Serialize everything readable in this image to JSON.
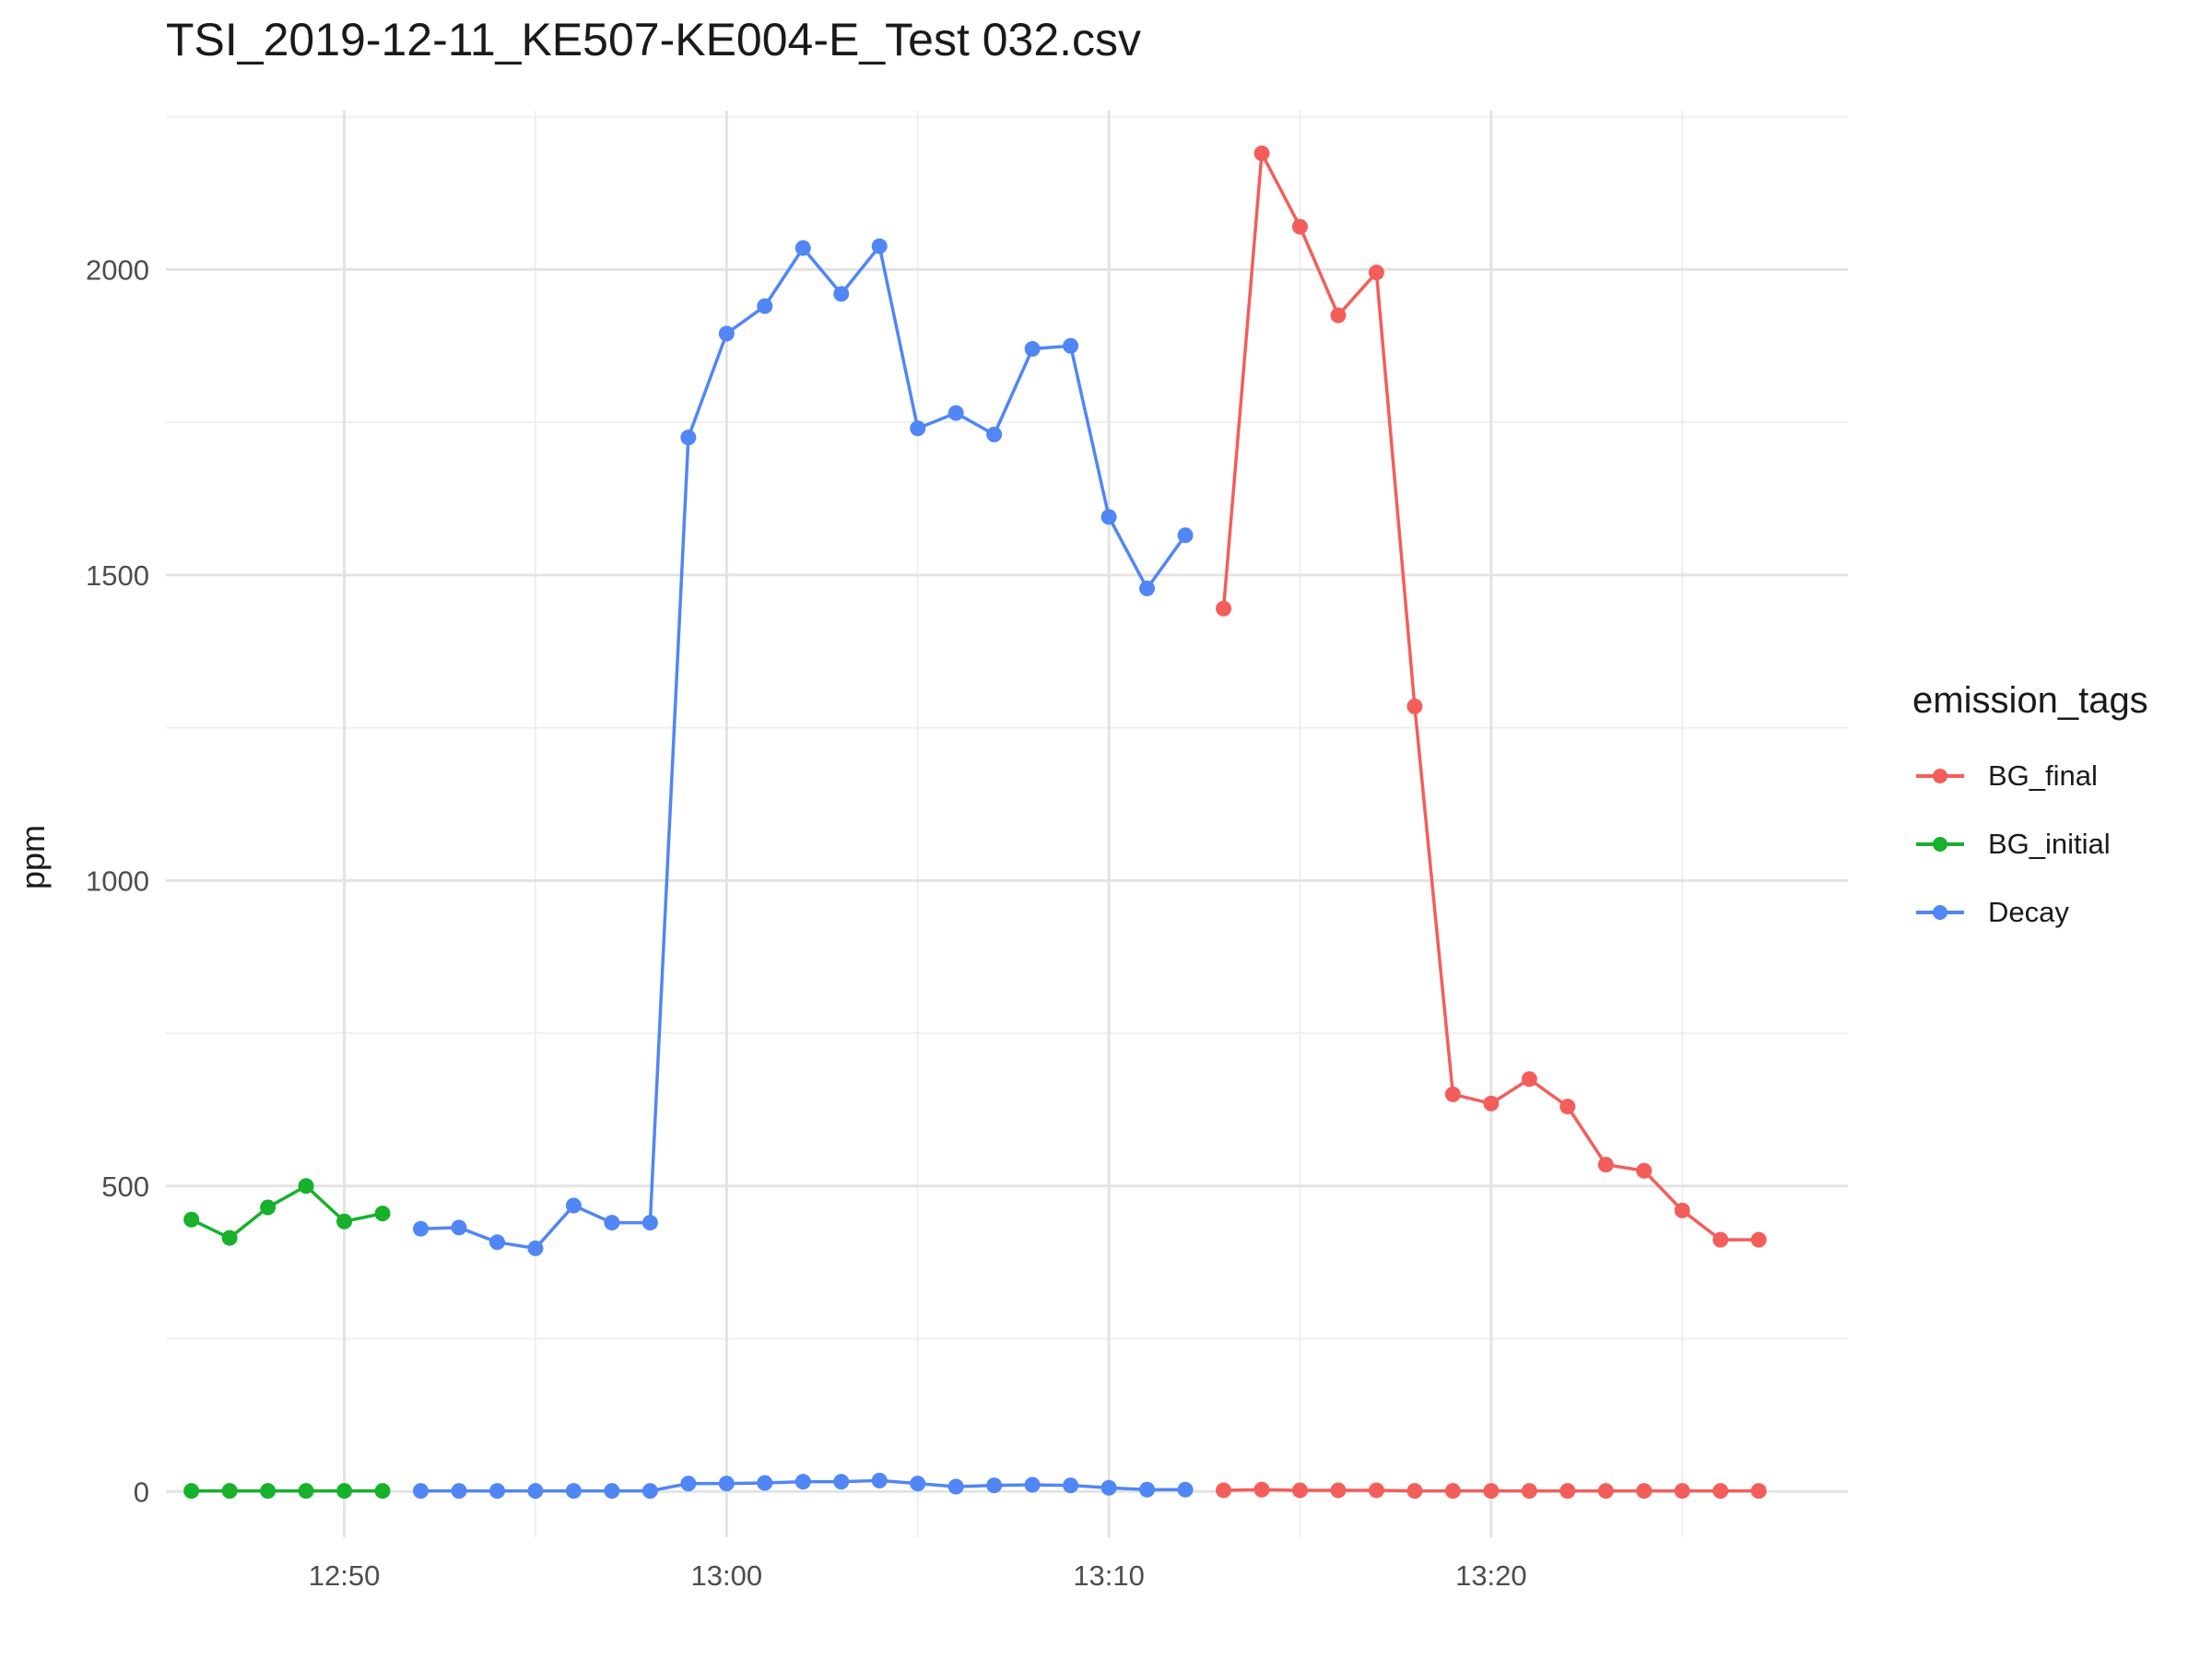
{
  "chart_data": {
    "type": "line",
    "title": "TSI_2019-12-11_KE507-KE004-E_Test 032.csv",
    "xlabel": "",
    "ylabel": "ppm",
    "x_unit": "time (HH:MM)",
    "xlim": [
      "12:45:20",
      "13:29:20"
    ],
    "ylim": [
      -75,
      2260
    ],
    "x_ticks": [
      "12:50",
      "13:00",
      "13:10",
      "13:20"
    ],
    "y_ticks": [
      0,
      500,
      1000,
      1500,
      2000
    ],
    "grid": true,
    "legend": {
      "title": "emission_tags",
      "position": "right"
    },
    "series": [
      {
        "name": "BG_final",
        "color": "#F35E5A",
        "group": "upper",
        "x": [
          "13:13",
          "13:14",
          "13:15",
          "13:16",
          "13:17",
          "13:18",
          "13:19",
          "13:20",
          "13:21",
          "13:22",
          "13:23",
          "13:24",
          "13:25",
          "13:26",
          "13:27"
        ],
        "values": [
          1445,
          2190,
          2070,
          1925,
          1995,
          1285,
          650,
          635,
          675,
          630,
          535,
          525,
          460,
          412,
          412
        ]
      },
      {
        "name": "BG_initial",
        "color": "#17B12B",
        "group": "upper",
        "x": [
          "12:46",
          "12:47",
          "12:48",
          "12:49",
          "12:50",
          "12:51"
        ],
        "values": [
          445,
          415,
          465,
          500,
          442,
          455
        ]
      },
      {
        "name": "Decay",
        "color": "#5086F6",
        "group": "upper",
        "x": [
          "12:52",
          "12:53",
          "12:54",
          "12:55",
          "12:56",
          "12:57",
          "12:58",
          "12:59",
          "13:00",
          "13:01",
          "13:02",
          "13:03",
          "13:04",
          "13:05",
          "13:06",
          "13:07",
          "13:08",
          "13:09",
          "13:10",
          "13:11",
          "13:12"
        ],
        "values": [
          430,
          432,
          408,
          398,
          468,
          440,
          440,
          1725,
          1895,
          1940,
          2035,
          1960,
          2038,
          1740,
          1765,
          1730,
          1870,
          1875,
          1595,
          1478,
          1565
        ]
      },
      {
        "name": "BG_final",
        "color": "#F35E5A",
        "group": "lower",
        "x": [
          "13:13",
          "13:14",
          "13:15",
          "13:16",
          "13:17",
          "13:18",
          "13:19",
          "13:20",
          "13:21",
          "13:22",
          "13:23",
          "13:24",
          "13:25",
          "13:26",
          "13:27"
        ],
        "values": [
          2,
          3,
          2,
          2,
          2,
          1,
          1,
          1,
          1,
          1,
          1,
          1,
          1,
          1,
          1
        ]
      },
      {
        "name": "BG_initial",
        "color": "#17B12B",
        "group": "lower",
        "x": [
          "12:46",
          "12:47",
          "12:48",
          "12:49",
          "12:50",
          "12:51"
        ],
        "values": [
          1,
          1,
          1,
          1,
          1,
          1
        ]
      },
      {
        "name": "Decay",
        "color": "#5086F6",
        "group": "lower",
        "x": [
          "12:52",
          "12:53",
          "12:54",
          "12:55",
          "12:56",
          "12:57",
          "12:58",
          "12:59",
          "13:00",
          "13:01",
          "13:02",
          "13:03",
          "13:04",
          "13:05",
          "13:06",
          "13:07",
          "13:08",
          "13:09",
          "13:10",
          "13:11",
          "13:12"
        ],
        "values": [
          1,
          1,
          1,
          1,
          1,
          1,
          1,
          13,
          13,
          14,
          16,
          16,
          18,
          13,
          8,
          10,
          11,
          10,
          6,
          3,
          3
        ]
      }
    ]
  }
}
